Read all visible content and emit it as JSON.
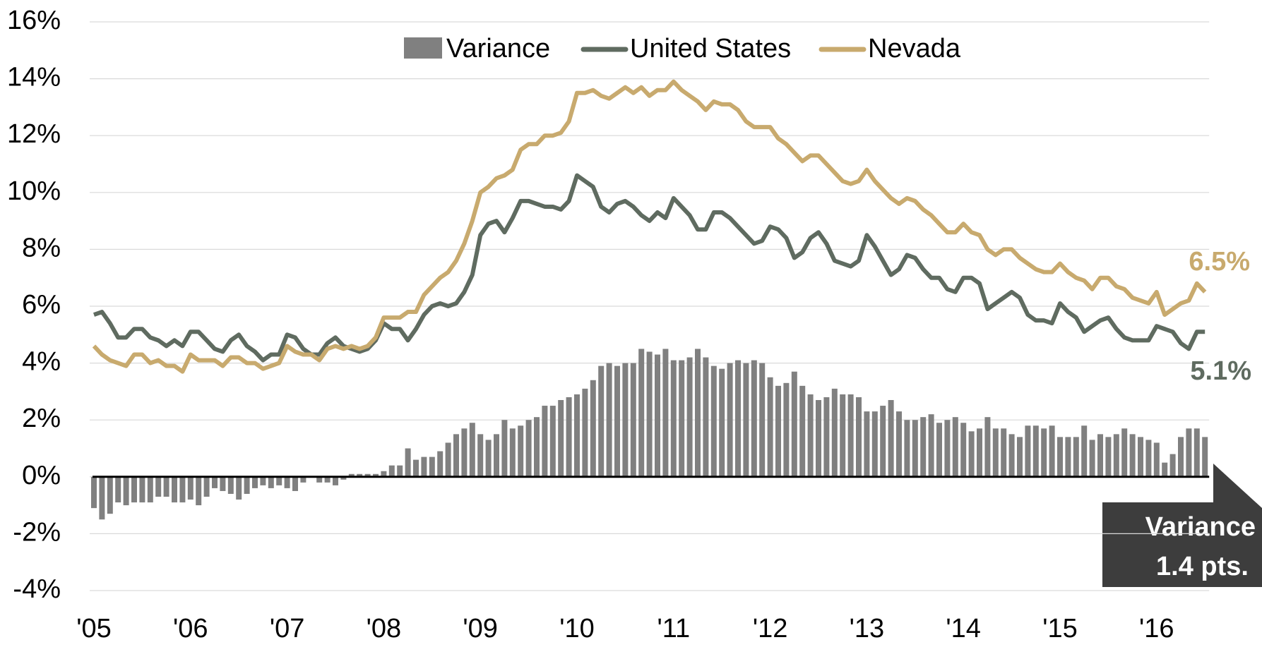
{
  "chart_data": {
    "type": "bar-line",
    "categories": [
      "'05",
      null,
      null,
      null,
      null,
      null,
      null,
      null,
      null,
      null,
      null,
      null,
      "'06",
      null,
      null,
      null,
      null,
      null,
      null,
      null,
      null,
      null,
      null,
      null,
      "'07",
      null,
      null,
      null,
      null,
      null,
      null,
      null,
      null,
      null,
      null,
      null,
      "'08",
      null,
      null,
      null,
      null,
      null,
      null,
      null,
      null,
      null,
      null,
      null,
      "'09",
      null,
      null,
      null,
      null,
      null,
      null,
      null,
      null,
      null,
      null,
      null,
      "'10",
      null,
      null,
      null,
      null,
      null,
      null,
      null,
      null,
      null,
      null,
      null,
      "'11",
      null,
      null,
      null,
      null,
      null,
      null,
      null,
      null,
      null,
      null,
      null,
      "'12",
      null,
      null,
      null,
      null,
      null,
      null,
      null,
      null,
      null,
      null,
      null,
      "'13",
      null,
      null,
      null,
      null,
      null,
      null,
      null,
      null,
      null,
      null,
      null,
      "'14",
      null,
      null,
      null,
      null,
      null,
      null,
      null,
      null,
      null,
      null,
      null,
      "'15",
      null,
      null,
      null,
      null,
      null,
      null,
      null,
      null,
      null,
      null,
      null,
      "'16",
      null,
      null,
      null,
      null,
      null,
      null
    ],
    "series": [
      {
        "name": "Variance",
        "type": "bar",
        "color": "#808080",
        "values": [
          -1.1,
          -1.5,
          -1.3,
          -0.9,
          -1.0,
          -0.9,
          -0.9,
          -0.9,
          -0.7,
          -0.7,
          -0.9,
          -0.9,
          -0.8,
          -1.0,
          -0.7,
          -0.4,
          -0.5,
          -0.6,
          -0.8,
          -0.6,
          -0.4,
          -0.3,
          -0.4,
          -0.3,
          -0.4,
          -0.5,
          -0.2,
          0,
          -0.2,
          -0.2,
          -0.3,
          -0.1,
          0.1,
          0.1,
          0.1,
          0.1,
          0.2,
          0.4,
          0.4,
          1.0,
          0.6,
          0.7,
          0.7,
          0.9,
          1.2,
          1.5,
          1.7,
          1.9,
          1.5,
          1.3,
          1.5,
          2.0,
          1.7,
          1.8,
          2.0,
          2.1,
          2.5,
          2.5,
          2.7,
          2.8,
          2.9,
          3.1,
          3.4,
          3.9,
          4.0,
          3.9,
          4.0,
          4.0,
          4.5,
          4.4,
          4.3,
          4.5,
          4.1,
          4.1,
          4.2,
          4.5,
          4.2,
          3.9,
          3.8,
          4.0,
          4.1,
          4.0,
          4.1,
          4.0,
          3.5,
          3.2,
          3.3,
          3.7,
          3.2,
          2.9,
          2.7,
          2.8,
          3.1,
          2.9,
          2.9,
          2.8,
          2.3,
          2.3,
          2.5,
          2.7,
          2.3,
          2.0,
          2.0,
          2.1,
          2.2,
          1.9,
          2.0,
          2.1,
          1.9,
          1.6,
          1.7,
          2.1,
          1.7,
          1.7,
          1.5,
          1.4,
          1.8,
          1.8,
          1.7,
          1.8,
          1.4,
          1.4,
          1.4,
          1.8,
          1.3,
          1.5,
          1.4,
          1.5,
          1.7,
          1.5,
          1.4,
          1.3,
          1.2,
          0.5,
          0.8,
          1.4,
          1.7,
          1.7,
          1.4
        ]
      },
      {
        "name": "United States",
        "type": "line",
        "color": "#5f6b60",
        "values": [
          5.7,
          5.8,
          5.4,
          4.9,
          4.9,
          5.2,
          5.2,
          4.9,
          4.8,
          4.6,
          4.8,
          4.6,
          5.1,
          5.1,
          4.8,
          4.5,
          4.4,
          4.8,
          5.0,
          4.6,
          4.4,
          4.1,
          4.3,
          4.3,
          5.0,
          4.9,
          4.5,
          4.3,
          4.3,
          4.7,
          4.9,
          4.6,
          4.5,
          4.4,
          4.5,
          4.8,
          5.4,
          5.2,
          5.2,
          4.8,
          5.2,
          5.7,
          6.0,
          6.1,
          6.0,
          6.1,
          6.5,
          7.1,
          8.5,
          8.9,
          9.0,
          8.6,
          9.1,
          9.7,
          9.7,
          9.6,
          9.5,
          9.5,
          9.4,
          9.7,
          10.6,
          10.4,
          10.2,
          9.5,
          9.3,
          9.6,
          9.7,
          9.5,
          9.2,
          9.0,
          9.3,
          9.1,
          9.8,
          9.5,
          9.2,
          8.7,
          8.7,
          9.3,
          9.3,
          9.1,
          8.8,
          8.5,
          8.2,
          8.3,
          8.8,
          8.7,
          8.4,
          7.7,
          7.9,
          8.4,
          8.6,
          8.2,
          7.6,
          7.5,
          7.4,
          7.6,
          8.5,
          8.1,
          7.6,
          7.1,
          7.3,
          7.8,
          7.7,
          7.3,
          7.0,
          7.0,
          6.6,
          6.5,
          7.0,
          7.0,
          6.8,
          5.9,
          6.1,
          6.3,
          6.5,
          6.3,
          5.7,
          5.5,
          5.5,
          5.4,
          6.1,
          5.8,
          5.6,
          5.1,
          5.3,
          5.5,
          5.6,
          5.2,
          4.9,
          4.8,
          4.8,
          4.8,
          5.3,
          5.2,
          5.1,
          4.7,
          4.5,
          5.1,
          5.1
        ]
      },
      {
        "name": "Nevada",
        "type": "line",
        "color": "#c8aa6e",
        "values": [
          4.6,
          4.3,
          4.1,
          4.0,
          3.9,
          4.3,
          4.3,
          4.0,
          4.1,
          3.9,
          3.9,
          3.7,
          4.3,
          4.1,
          4.1,
          4.1,
          3.9,
          4.2,
          4.2,
          4.0,
          4.0,
          3.8,
          3.9,
          4.0,
          4.6,
          4.4,
          4.3,
          4.3,
          4.1,
          4.5,
          4.6,
          4.5,
          4.6,
          4.5,
          4.6,
          4.9,
          5.6,
          5.6,
          5.6,
          5.8,
          5.8,
          6.4,
          6.7,
          7.0,
          7.2,
          7.6,
          8.2,
          9.0,
          10.0,
          10.2,
          10.5,
          10.6,
          10.8,
          11.5,
          11.7,
          11.7,
          12.0,
          12.0,
          12.1,
          12.5,
          13.5,
          13.5,
          13.6,
          13.4,
          13.3,
          13.5,
          13.7,
          13.5,
          13.7,
          13.4,
          13.6,
          13.6,
          13.9,
          13.6,
          13.4,
          13.2,
          12.9,
          13.2,
          13.1,
          13.1,
          12.9,
          12.5,
          12.3,
          12.3,
          12.3,
          11.9,
          11.7,
          11.4,
          11.1,
          11.3,
          11.3,
          11.0,
          10.7,
          10.4,
          10.3,
          10.4,
          10.8,
          10.4,
          10.1,
          9.8,
          9.6,
          9.8,
          9.7,
          9.4,
          9.2,
          8.9,
          8.6,
          8.6,
          8.9,
          8.6,
          8.5,
          8.0,
          7.8,
          8.0,
          8.0,
          7.7,
          7.5,
          7.3,
          7.2,
          7.2,
          7.5,
          7.2,
          7.0,
          6.9,
          6.6,
          7.0,
          7.0,
          6.7,
          6.6,
          6.3,
          6.2,
          6.1,
          6.5,
          5.7,
          5.9,
          6.1,
          6.2,
          6.8,
          6.5
        ]
      }
    ],
    "ylim": [
      -4,
      16
    ],
    "yticks": [
      {
        "value": -4,
        "label": "-4%"
      },
      {
        "value": -2,
        "label": "-2%"
      },
      {
        "value": 0,
        "label": "0%"
      },
      {
        "value": 2,
        "label": "2%"
      },
      {
        "value": 4,
        "label": "4%"
      },
      {
        "value": 6,
        "label": "6%"
      },
      {
        "value": 8,
        "label": "8%"
      },
      {
        "value": 10,
        "label": "10%"
      },
      {
        "value": 12,
        "label": "12%"
      },
      {
        "value": 14,
        "label": "14%"
      },
      {
        "value": 16,
        "label": "16%"
      }
    ],
    "grid": true,
    "legend": "top",
    "annotations": [
      "6.5%",
      "5.1%",
      "Variance",
      "1.4 pts."
    ]
  }
}
